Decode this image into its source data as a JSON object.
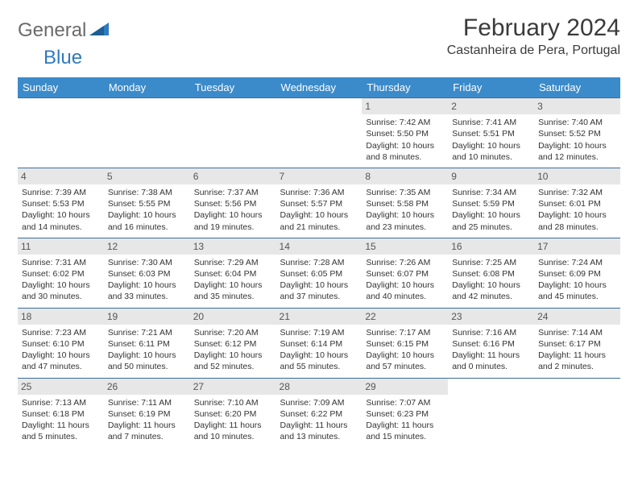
{
  "logo": {
    "text1": "General",
    "text2": "Blue"
  },
  "title": "February 2024",
  "location": "Castanheira de Pera, Portugal",
  "colors": {
    "header_bg": "#3b8bca",
    "header_text": "#ffffff",
    "row_border": "#3b6e9a",
    "daynum_bg": "#e7e7e7",
    "logo_gray": "#6a6a6a",
    "logo_blue": "#2f7ac0"
  },
  "day_headers": [
    "Sunday",
    "Monday",
    "Tuesday",
    "Wednesday",
    "Thursday",
    "Friday",
    "Saturday"
  ],
  "weeks": [
    [
      {
        "empty": true
      },
      {
        "empty": true
      },
      {
        "empty": true
      },
      {
        "empty": true
      },
      {
        "day": "1",
        "sunrise": "Sunrise: 7:42 AM",
        "sunset": "Sunset: 5:50 PM",
        "day1": "Daylight: 10 hours",
        "day2": "and 8 minutes."
      },
      {
        "day": "2",
        "sunrise": "Sunrise: 7:41 AM",
        "sunset": "Sunset: 5:51 PM",
        "day1": "Daylight: 10 hours",
        "day2": "and 10 minutes."
      },
      {
        "day": "3",
        "sunrise": "Sunrise: 7:40 AM",
        "sunset": "Sunset: 5:52 PM",
        "day1": "Daylight: 10 hours",
        "day2": "and 12 minutes."
      }
    ],
    [
      {
        "day": "4",
        "sunrise": "Sunrise: 7:39 AM",
        "sunset": "Sunset: 5:53 PM",
        "day1": "Daylight: 10 hours",
        "day2": "and 14 minutes."
      },
      {
        "day": "5",
        "sunrise": "Sunrise: 7:38 AM",
        "sunset": "Sunset: 5:55 PM",
        "day1": "Daylight: 10 hours",
        "day2": "and 16 minutes."
      },
      {
        "day": "6",
        "sunrise": "Sunrise: 7:37 AM",
        "sunset": "Sunset: 5:56 PM",
        "day1": "Daylight: 10 hours",
        "day2": "and 19 minutes."
      },
      {
        "day": "7",
        "sunrise": "Sunrise: 7:36 AM",
        "sunset": "Sunset: 5:57 PM",
        "day1": "Daylight: 10 hours",
        "day2": "and 21 minutes."
      },
      {
        "day": "8",
        "sunrise": "Sunrise: 7:35 AM",
        "sunset": "Sunset: 5:58 PM",
        "day1": "Daylight: 10 hours",
        "day2": "and 23 minutes."
      },
      {
        "day": "9",
        "sunrise": "Sunrise: 7:34 AM",
        "sunset": "Sunset: 5:59 PM",
        "day1": "Daylight: 10 hours",
        "day2": "and 25 minutes."
      },
      {
        "day": "10",
        "sunrise": "Sunrise: 7:32 AM",
        "sunset": "Sunset: 6:01 PM",
        "day1": "Daylight: 10 hours",
        "day2": "and 28 minutes."
      }
    ],
    [
      {
        "day": "11",
        "sunrise": "Sunrise: 7:31 AM",
        "sunset": "Sunset: 6:02 PM",
        "day1": "Daylight: 10 hours",
        "day2": "and 30 minutes."
      },
      {
        "day": "12",
        "sunrise": "Sunrise: 7:30 AM",
        "sunset": "Sunset: 6:03 PM",
        "day1": "Daylight: 10 hours",
        "day2": "and 33 minutes."
      },
      {
        "day": "13",
        "sunrise": "Sunrise: 7:29 AM",
        "sunset": "Sunset: 6:04 PM",
        "day1": "Daylight: 10 hours",
        "day2": "and 35 minutes."
      },
      {
        "day": "14",
        "sunrise": "Sunrise: 7:28 AM",
        "sunset": "Sunset: 6:05 PM",
        "day1": "Daylight: 10 hours",
        "day2": "and 37 minutes."
      },
      {
        "day": "15",
        "sunrise": "Sunrise: 7:26 AM",
        "sunset": "Sunset: 6:07 PM",
        "day1": "Daylight: 10 hours",
        "day2": "and 40 minutes."
      },
      {
        "day": "16",
        "sunrise": "Sunrise: 7:25 AM",
        "sunset": "Sunset: 6:08 PM",
        "day1": "Daylight: 10 hours",
        "day2": "and 42 minutes."
      },
      {
        "day": "17",
        "sunrise": "Sunrise: 7:24 AM",
        "sunset": "Sunset: 6:09 PM",
        "day1": "Daylight: 10 hours",
        "day2": "and 45 minutes."
      }
    ],
    [
      {
        "day": "18",
        "sunrise": "Sunrise: 7:23 AM",
        "sunset": "Sunset: 6:10 PM",
        "day1": "Daylight: 10 hours",
        "day2": "and 47 minutes."
      },
      {
        "day": "19",
        "sunrise": "Sunrise: 7:21 AM",
        "sunset": "Sunset: 6:11 PM",
        "day1": "Daylight: 10 hours",
        "day2": "and 50 minutes."
      },
      {
        "day": "20",
        "sunrise": "Sunrise: 7:20 AM",
        "sunset": "Sunset: 6:12 PM",
        "day1": "Daylight: 10 hours",
        "day2": "and 52 minutes."
      },
      {
        "day": "21",
        "sunrise": "Sunrise: 7:19 AM",
        "sunset": "Sunset: 6:14 PM",
        "day1": "Daylight: 10 hours",
        "day2": "and 55 minutes."
      },
      {
        "day": "22",
        "sunrise": "Sunrise: 7:17 AM",
        "sunset": "Sunset: 6:15 PM",
        "day1": "Daylight: 10 hours",
        "day2": "and 57 minutes."
      },
      {
        "day": "23",
        "sunrise": "Sunrise: 7:16 AM",
        "sunset": "Sunset: 6:16 PM",
        "day1": "Daylight: 11 hours",
        "day2": "and 0 minutes."
      },
      {
        "day": "24",
        "sunrise": "Sunrise: 7:14 AM",
        "sunset": "Sunset: 6:17 PM",
        "day1": "Daylight: 11 hours",
        "day2": "and 2 minutes."
      }
    ],
    [
      {
        "day": "25",
        "sunrise": "Sunrise: 7:13 AM",
        "sunset": "Sunset: 6:18 PM",
        "day1": "Daylight: 11 hours",
        "day2": "and 5 minutes."
      },
      {
        "day": "26",
        "sunrise": "Sunrise: 7:11 AM",
        "sunset": "Sunset: 6:19 PM",
        "day1": "Daylight: 11 hours",
        "day2": "and 7 minutes."
      },
      {
        "day": "27",
        "sunrise": "Sunrise: 7:10 AM",
        "sunset": "Sunset: 6:20 PM",
        "day1": "Daylight: 11 hours",
        "day2": "and 10 minutes."
      },
      {
        "day": "28",
        "sunrise": "Sunrise: 7:09 AM",
        "sunset": "Sunset: 6:22 PM",
        "day1": "Daylight: 11 hours",
        "day2": "and 13 minutes."
      },
      {
        "day": "29",
        "sunrise": "Sunrise: 7:07 AM",
        "sunset": "Sunset: 6:23 PM",
        "day1": "Daylight: 11 hours",
        "day2": "and 15 minutes."
      },
      {
        "empty": true
      },
      {
        "empty": true
      }
    ]
  ]
}
